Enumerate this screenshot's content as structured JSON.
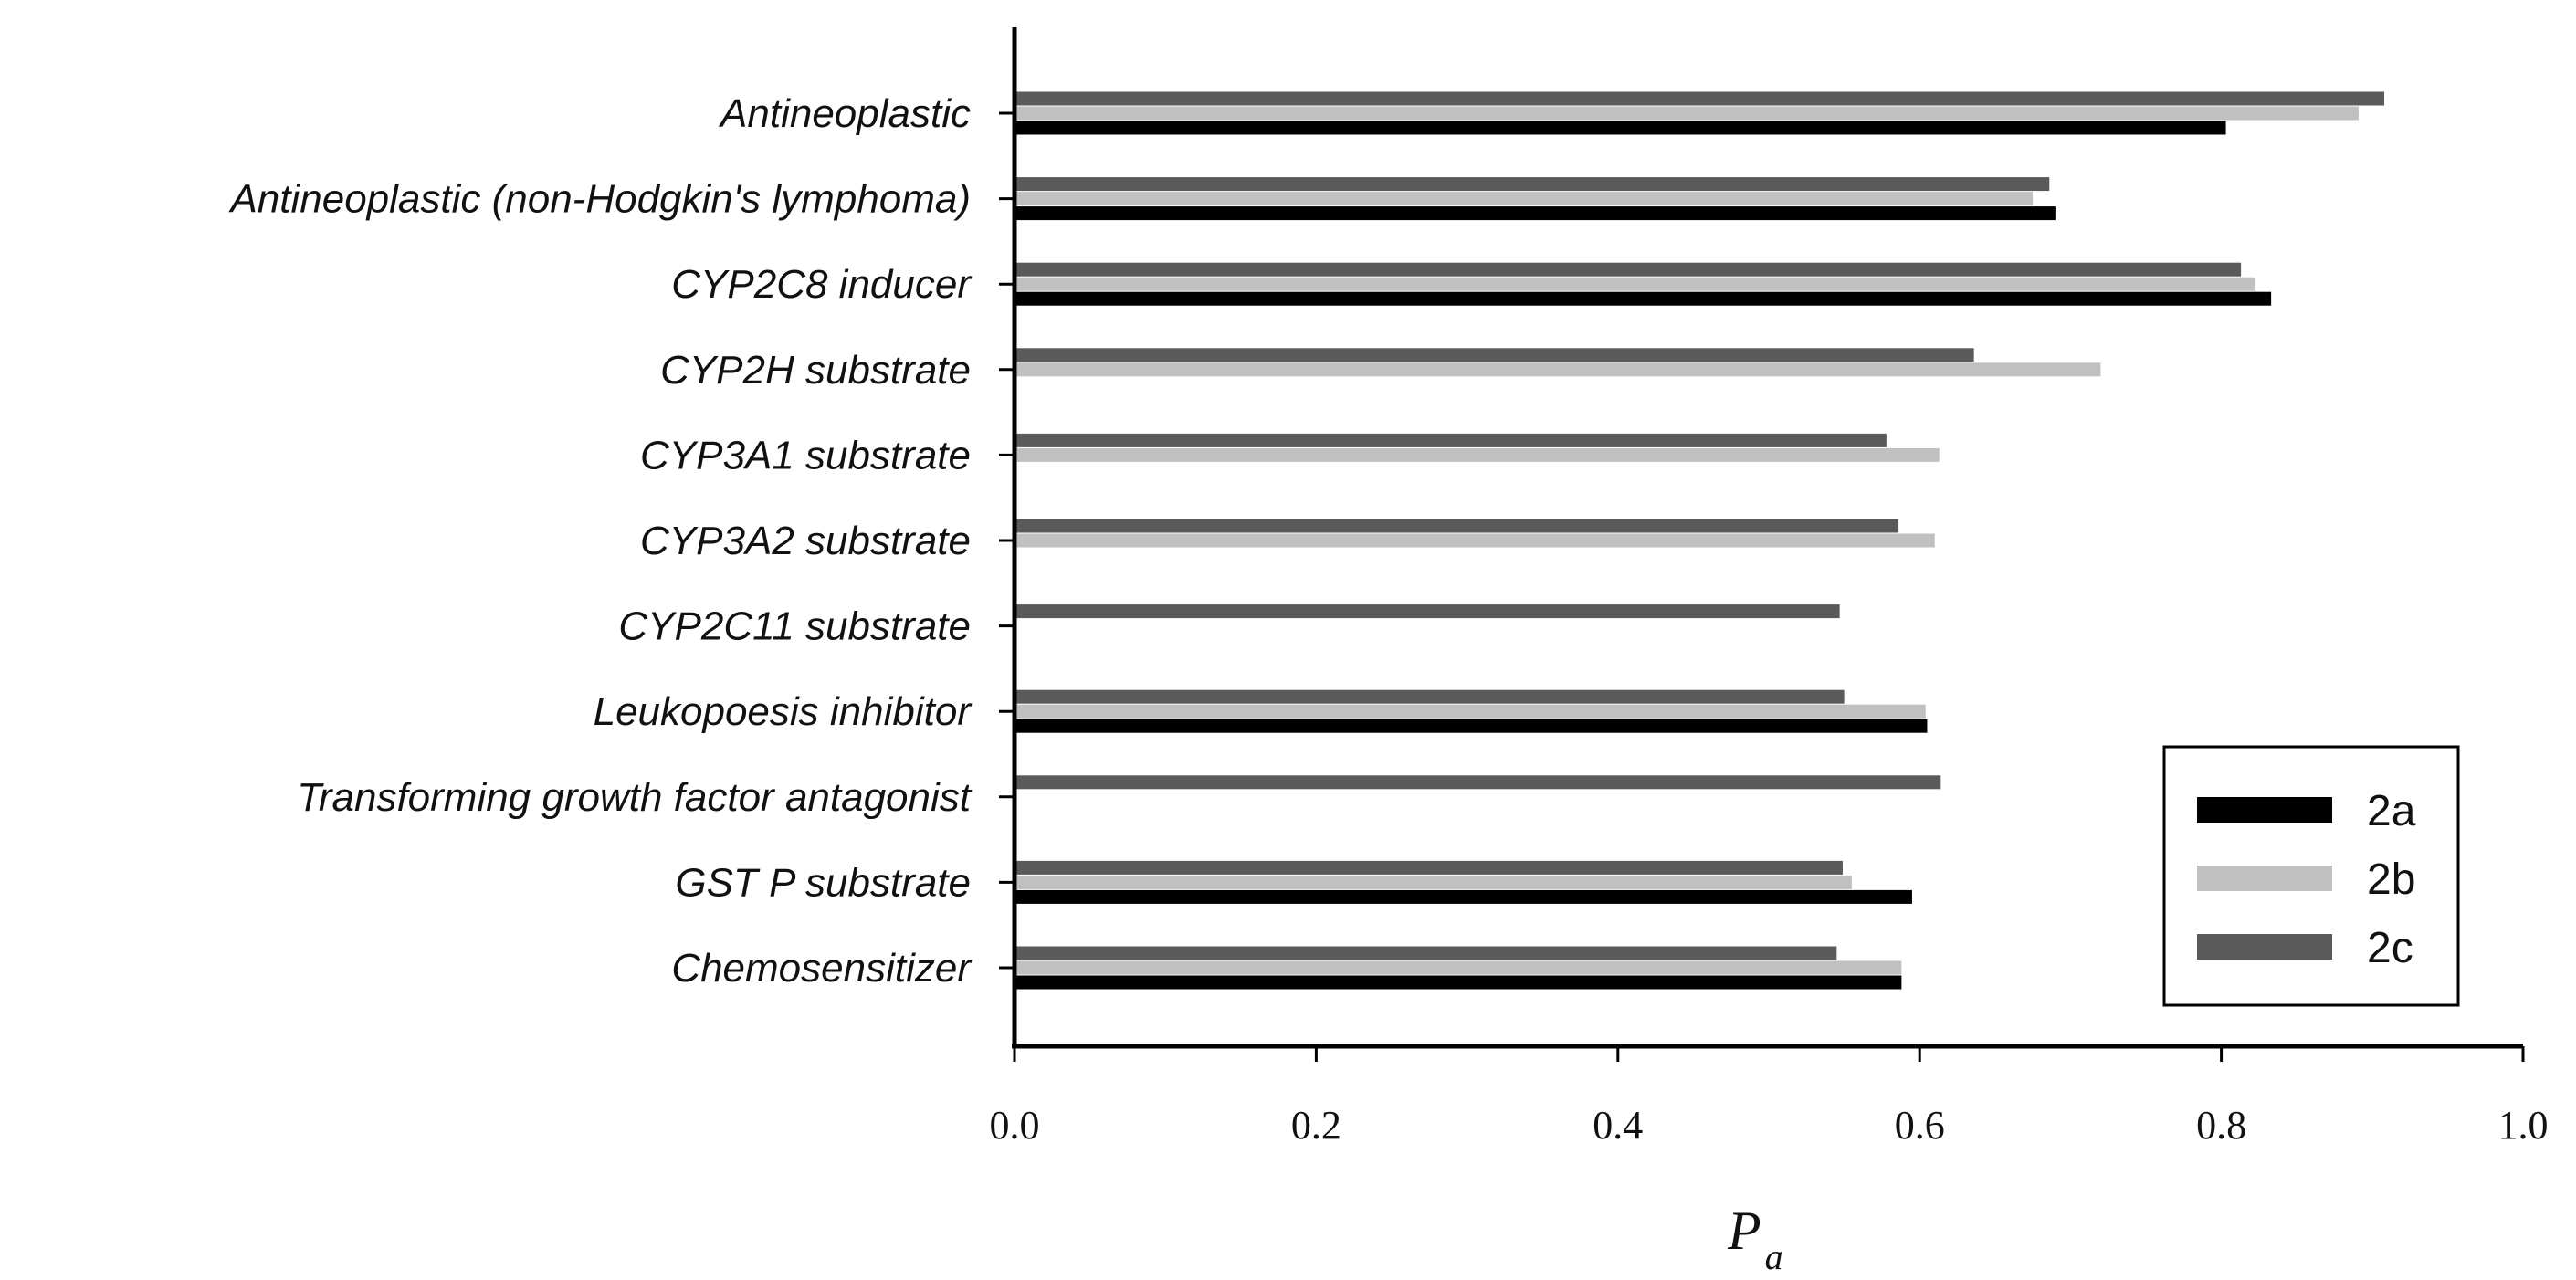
{
  "chart_data": {
    "type": "bar",
    "orientation": "horizontal",
    "categories": [
      "Antineoplastic",
      "Antineoplastic (non-Hodgkin's lymphoma)",
      "CYP2C8 inducer",
      "CYP2H substrate",
      "CYP3A1 substrate",
      "CYP3A2 substrate",
      "CYP2C11 substrate",
      "Leukopoesis inhibitor",
      "Transforming growth factor antagonist",
      "GST P substrate",
      "Chemosensitizer"
    ],
    "series": [
      {
        "name": "2a",
        "color": "#000000",
        "values": [
          0.803,
          0.69,
          0.833,
          null,
          null,
          null,
          null,
          0.605,
          null,
          0.595,
          0.588
        ]
      },
      {
        "name": "2b",
        "color": "#c0c0c0",
        "values": [
          0.891,
          0.675,
          0.822,
          0.72,
          0.613,
          0.61,
          null,
          0.604,
          null,
          0.555,
          0.588
        ]
      },
      {
        "name": "2c",
        "color": "#5a5a5a",
        "values": [
          0.908,
          0.686,
          0.813,
          0.636,
          0.578,
          0.586,
          0.547,
          0.55,
          0.614,
          0.549,
          0.545
        ]
      }
    ],
    "x_ticks": [
      "0.0",
      "0.2",
      "0.4",
      "0.6",
      "0.8",
      "1.0"
    ],
    "xlim": [
      0,
      1.0
    ],
    "xlabel_main": "P",
    "xlabel_sub": "a",
    "ylabel": "",
    "title": "",
    "legend_position": "bottom-right",
    "grid": false
  }
}
